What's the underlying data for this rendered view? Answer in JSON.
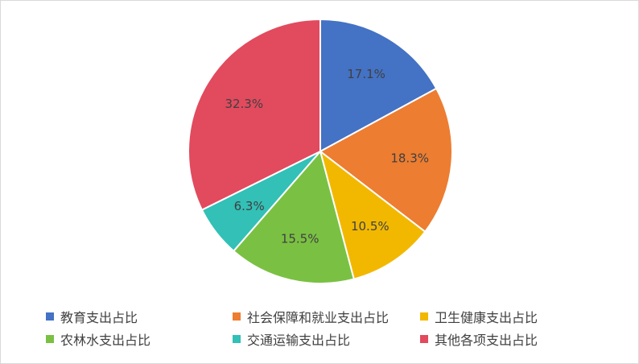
{
  "chart_data": {
    "type": "pie",
    "title": "",
    "legend_position": "bottom",
    "series": [
      {
        "name": "教育支出占比",
        "value": 17.1,
        "label": "17.1%",
        "color": "#4472C4"
      },
      {
        "name": "社会保障和就业支出占比",
        "value": 18.3,
        "label": "18.3%",
        "color": "#ED7D31"
      },
      {
        "name": "卫生健康支出占比",
        "value": 10.5,
        "label": "10.5%",
        "color": "#F2B800"
      },
      {
        "name": "农林水支出占比",
        "value": 15.5,
        "label": "15.5%",
        "color": "#7AC143"
      },
      {
        "name": "交通运输支出占比",
        "value": 6.3,
        "label": "6.3%",
        "color": "#32C0B7"
      },
      {
        "name": "其他各项支出占比",
        "value": 32.3,
        "label": "32.3%",
        "color": "#E24A5E"
      }
    ]
  }
}
